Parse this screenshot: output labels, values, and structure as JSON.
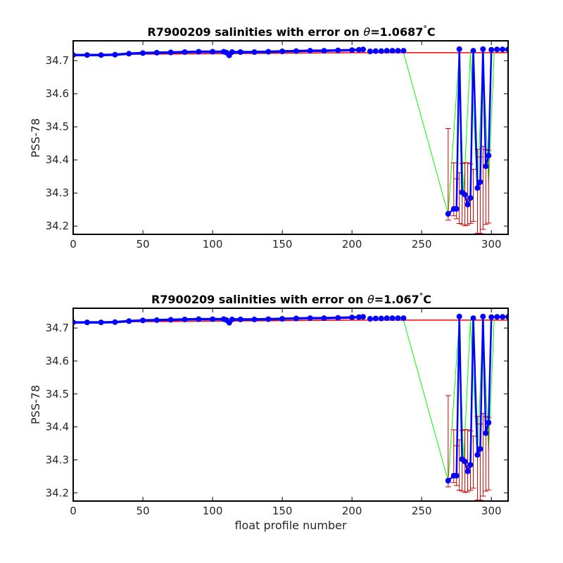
{
  "colors": {
    "points": "#0000ff",
    "main_line": "#0000ff",
    "green_line": "#00ff00",
    "error_bars": "#cc0000",
    "reference_line": "#ff0000",
    "axes": "#000000"
  },
  "chart_data": [
    {
      "type": "scatter",
      "title_prefix": "R7900209 salinities with error on ",
      "title_theta": "θ",
      "title_value": "=1.0687",
      "title_deg": "°",
      "title_unit": "C",
      "xlabel": "",
      "ylabel": "PSS-78",
      "xlim": [
        0,
        312
      ],
      "ylim": [
        34.175,
        34.76
      ],
      "xticks": [
        0,
        50,
        100,
        150,
        200,
        250,
        300
      ],
      "yticks": [
        34.2,
        34.3,
        34.4,
        34.5,
        34.6,
        34.7
      ],
      "ytick_labels": [
        "34.2",
        "34.3",
        "34.4",
        "34.5",
        "34.6",
        "34.7"
      ],
      "grid": false,
      "series": [
        {
          "role": "calibrated_salinity",
          "x": [
            0,
            10,
            20,
            30,
            40,
            50,
            60,
            70,
            80,
            90,
            100,
            108,
            110,
            112,
            114,
            120,
            130,
            140,
            150,
            160,
            170,
            180,
            190,
            200,
            205,
            208,
            213,
            217,
            221,
            225,
            229,
            233,
            237,
            269,
            273,
            275,
            277,
            279,
            281,
            283,
            285,
            287,
            290,
            292,
            294,
            296,
            298,
            300,
            304,
            308,
            312
          ],
          "y": [
            34.717,
            34.717,
            34.717,
            34.718,
            34.721,
            34.723,
            34.724,
            34.725,
            34.726,
            34.727,
            34.727,
            34.727,
            34.724,
            34.716,
            34.726,
            34.726,
            34.726,
            34.727,
            34.728,
            34.729,
            34.73,
            34.73,
            34.731,
            34.732,
            34.733,
            34.734,
            34.728,
            34.729,
            34.729,
            34.73,
            34.73,
            34.73,
            34.73,
            34.237,
            34.252,
            34.252,
            34.735,
            34.302,
            34.295,
            34.265,
            34.285,
            34.73,
            34.315,
            34.333,
            34.735,
            34.381,
            34.413,
            34.733,
            34.734,
            34.734,
            34.734
          ]
        },
        {
          "role": "comparison_profile",
          "x": [
            237,
            269,
            277,
            280,
            285,
            290,
            294,
            298,
            302
          ],
          "y": [
            34.724,
            34.236,
            34.724,
            34.29,
            34.724,
            34.31,
            34.724,
            34.33,
            34.724
          ]
        },
        {
          "role": "reference_level",
          "x": [
            0,
            206,
            296,
            312
          ],
          "y": [
            34.718,
            34.724,
            34.724,
            34.724
          ]
        }
      ],
      "error_bars": {
        "x": [
          269,
          273,
          275,
          277,
          279,
          281,
          283,
          285,
          287,
          290,
          292,
          294,
          296,
          298
        ],
        "lower": [
          34.218,
          34.231,
          34.222,
          34.208,
          34.205,
          34.201,
          34.203,
          34.208,
          34.214,
          34.178,
          34.178,
          34.19,
          34.205,
          34.209
        ],
        "upper": [
          34.495,
          34.391,
          34.343,
          34.361,
          34.389,
          34.392,
          34.391,
          34.388,
          34.372,
          34.432,
          34.409,
          34.441,
          34.431,
          34.429
        ]
      }
    },
    {
      "type": "scatter",
      "title_prefix": "R7900209 salinities with error on ",
      "title_theta": "θ",
      "title_value": "=1.067",
      "title_deg": "°",
      "title_unit": "C",
      "xlabel": "float profile number",
      "ylabel": "PSS-78",
      "xlim": [
        0,
        312
      ],
      "ylim": [
        34.175,
        34.76
      ],
      "xticks": [
        0,
        50,
        100,
        150,
        200,
        250,
        300
      ],
      "yticks": [
        34.2,
        34.3,
        34.4,
        34.5,
        34.6,
        34.7
      ],
      "ytick_labels": [
        "34.2",
        "34.3",
        "34.4",
        "34.5",
        "34.6",
        "34.7"
      ],
      "grid": false,
      "series": [
        {
          "role": "calibrated_salinity",
          "x": [
            0,
            10,
            20,
            30,
            40,
            50,
            60,
            70,
            80,
            90,
            100,
            108,
            110,
            112,
            114,
            120,
            130,
            140,
            150,
            160,
            170,
            180,
            190,
            200,
            205,
            208,
            213,
            217,
            221,
            225,
            229,
            233,
            237,
            269,
            273,
            275,
            277,
            279,
            281,
            283,
            285,
            287,
            290,
            292,
            294,
            296,
            298,
            300,
            304,
            308,
            312
          ],
          "y": [
            34.717,
            34.717,
            34.717,
            34.718,
            34.721,
            34.723,
            34.724,
            34.725,
            34.726,
            34.727,
            34.727,
            34.727,
            34.724,
            34.716,
            34.726,
            34.726,
            34.726,
            34.727,
            34.728,
            34.729,
            34.73,
            34.73,
            34.731,
            34.732,
            34.733,
            34.734,
            34.728,
            34.729,
            34.729,
            34.73,
            34.73,
            34.73,
            34.73,
            34.237,
            34.252,
            34.252,
            34.735,
            34.302,
            34.295,
            34.265,
            34.285,
            34.73,
            34.315,
            34.333,
            34.735,
            34.381,
            34.413,
            34.733,
            34.734,
            34.734,
            34.734
          ]
        },
        {
          "role": "comparison_profile",
          "x": [
            237,
            269,
            277,
            280,
            285,
            290,
            294,
            298,
            302
          ],
          "y": [
            34.724,
            34.236,
            34.724,
            34.29,
            34.724,
            34.31,
            34.724,
            34.33,
            34.724
          ]
        },
        {
          "role": "reference_level",
          "x": [
            0,
            206,
            296,
            312
          ],
          "y": [
            34.718,
            34.724,
            34.724,
            34.724
          ]
        }
      ],
      "error_bars": {
        "x": [
          269,
          273,
          275,
          277,
          279,
          281,
          283,
          285,
          287,
          290,
          292,
          294,
          296,
          298
        ],
        "lower": [
          34.218,
          34.231,
          34.222,
          34.208,
          34.205,
          34.201,
          34.203,
          34.208,
          34.214,
          34.178,
          34.178,
          34.19,
          34.205,
          34.209
        ],
        "upper": [
          34.495,
          34.391,
          34.343,
          34.361,
          34.389,
          34.392,
          34.391,
          34.388,
          34.372,
          34.432,
          34.409,
          34.441,
          34.431,
          34.429
        ]
      }
    }
  ]
}
